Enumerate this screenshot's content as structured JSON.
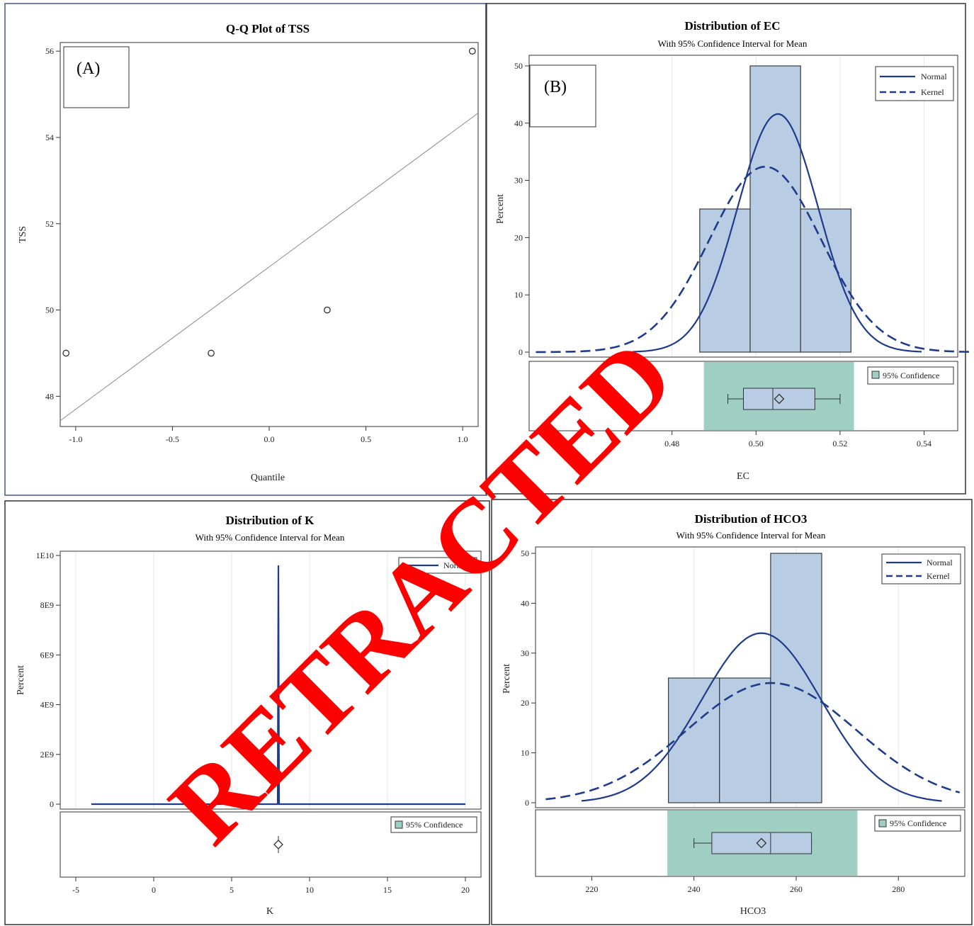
{
  "panels": {
    "A": {
      "label": "(A)",
      "chart": {
        "type": "scatter",
        "title": "Q-Q Plot of TSS",
        "xlabel": "Quantile",
        "ylabel": "TSS",
        "xlim": [
          -1.08,
          1.08
        ],
        "ylim": [
          47.3,
          56.2
        ],
        "xticks": [
          "-1.0",
          "-0.5",
          "0.0",
          "0.5",
          "1.0"
        ],
        "yticks": [
          "48",
          "50",
          "52",
          "54",
          "56"
        ],
        "points": [
          {
            "x": -1.05,
            "y": 49
          },
          {
            "x": -0.3,
            "y": 49
          },
          {
            "x": 0.3,
            "y": 50
          },
          {
            "x": 1.05,
            "y": 56
          }
        ],
        "reference_line": {
          "intercept": 51.0,
          "slope": 3.3
        }
      }
    },
    "B": {
      "label": "(B)",
      "chart": {
        "type": "bar",
        "title": "Distribution of EC",
        "subtitle": "With 95% Confidence Interval for Mean",
        "xlabel": "EC",
        "ylabel": "Percent",
        "xlim": [
          0.446,
          0.548
        ],
        "ylim": [
          0,
          50
        ],
        "xticks": [
          "0.48",
          "0.50",
          "0.52",
          "0.54"
        ],
        "yticks": [
          "0",
          "10",
          "20",
          "30",
          "40",
          "50"
        ],
        "bins": [
          {
            "from": 0.4866,
            "to": 0.4986,
            "percent": 25
          },
          {
            "from": 0.4986,
            "to": 0.5106,
            "percent": 50
          },
          {
            "from": 0.5106,
            "to": 0.5226,
            "percent": 25
          }
        ],
        "normal": {
          "mean": 0.5052,
          "sd": 0.0096,
          "peak": 41.6,
          "range": [
            0.4706,
            0.5394
          ]
        },
        "kernel": {
          "mean": 0.5022,
          "sd": 0.0133,
          "peak": 32.4,
          "range": [
            0.4476,
            0.5548
          ]
        },
        "legend": [
          "Normal",
          "Kernel"
        ],
        "ci_label": "95% Confidence",
        "ci": [
          0.4876,
          0.5233
        ],
        "box": {
          "min": 0.4933,
          "q1": 0.497,
          "median": 0.504,
          "mean": 0.5055,
          "q3": 0.514,
          "max": 0.52
        }
      }
    },
    "C": {
      "chart": {
        "type": "line",
        "title": "Distribution of K",
        "subtitle": "With 95% Confidence Interval for Mean",
        "xlabel": "K",
        "ylabel": "Percent",
        "xlim": [
          -6,
          21
        ],
        "ylim": [
          0,
          10000000000
        ],
        "xticks": [
          "-5",
          "0",
          "5",
          "10",
          "15",
          "20"
        ],
        "yticks": [
          "0",
          "2E9",
          "4E9",
          "6E9",
          "8E9",
          "1E10"
        ],
        "normal_spike": {
          "x": 8,
          "peak": 9600000000,
          "baseline_range": [
            -4,
            20
          ]
        },
        "legend": [
          "Normal"
        ],
        "ci_label": "95% Confidence",
        "mean_marker": 8
      }
    },
    "D": {
      "chart": {
        "type": "bar",
        "title": "Distribution of HCO3",
        "subtitle": "With 95% Confidence Interval for Mean",
        "xlabel": "HCO3",
        "ylabel": "Percent",
        "xlim": [
          209,
          293
        ],
        "ylim": [
          0,
          50
        ],
        "xticks": [
          "220",
          "240",
          "260",
          "280"
        ],
        "yticks": [
          "0",
          "10",
          "20",
          "30",
          "40",
          "50"
        ],
        "bins": [
          {
            "from": 235,
            "to": 245,
            "percent": 25
          },
          {
            "from": 245,
            "to": 255,
            "percent": 25
          },
          {
            "from": 255,
            "to": 265,
            "percent": 50
          }
        ],
        "normal": {
          "mean": 253.2,
          "sd": 11.7,
          "peak": 34,
          "range": [
            218,
            288.5
          ]
        },
        "kernel": {
          "mean": 255.2,
          "sd": 16.6,
          "peak": 24,
          "range": [
            211,
            292
          ]
        },
        "legend": [
          "Normal",
          "Kernel"
        ],
        "ci_label": "95% Confidence",
        "ci": [
          234.8,
          272.0
        ],
        "box": {
          "min": 240,
          "q1": 243.5,
          "median": 255,
          "mean": 253.2,
          "q3": 263,
          "max": 263
        }
      }
    }
  },
  "watermark": "RETRACTED",
  "colors": {
    "bar_fill": "#b8cce4",
    "bar_stroke": "#3a3a3a",
    "curve": "#1f3b8c",
    "ci_fill": "#9fcfc3",
    "watermark": "#ff0000",
    "panel_border": "#333333"
  }
}
